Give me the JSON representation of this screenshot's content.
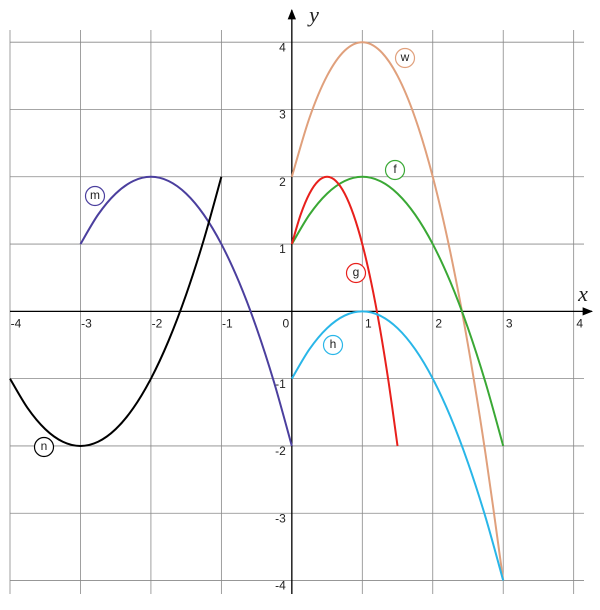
{
  "chart_data": {
    "type": "line",
    "xlabel": "x",
    "ylabel": "y",
    "xlim": [
      -4.0,
      4.26
    ],
    "ylim": [
      -4.2,
      4.3
    ],
    "xticks": [
      -4,
      -3,
      -2,
      -1,
      0,
      1,
      2,
      3,
      4
    ],
    "yticks": [
      -4,
      -3,
      -2,
      -1,
      1,
      2,
      3,
      4
    ],
    "grid": true,
    "series": [
      {
        "name": "w",
        "color": "#e0a07c",
        "x": [
          0,
          0.25,
          0.5,
          0.75,
          1,
          1.25,
          1.5,
          1.75,
          2,
          2.25,
          2.5,
          2.75,
          3
        ],
        "values": [
          2,
          2.875,
          3.5,
          3.875,
          4,
          3.875,
          3.5,
          2.875,
          2,
          0.875,
          -0.5,
          -2.125,
          -4
        ]
      },
      {
        "name": "f",
        "color": "#3aa835",
        "x": [
          0,
          0.25,
          0.5,
          0.75,
          1,
          1.25,
          1.5,
          1.75,
          2,
          2.25,
          2.5,
          2.75,
          3
        ],
        "values": [
          1,
          1.4375,
          1.75,
          1.9375,
          2,
          1.9375,
          1.75,
          1.4375,
          1,
          0.4375,
          -0.25,
          -1.0625,
          -2
        ]
      },
      {
        "name": "g",
        "color": "#e8201c",
        "x": [
          0,
          0.125,
          0.25,
          0.375,
          0.5,
          0.625,
          0.75,
          0.875,
          1,
          1.125,
          1.25,
          1.375,
          1.5
        ],
        "values": [
          1,
          1.4375,
          1.75,
          1.9375,
          2,
          1.9375,
          1.75,
          1.4375,
          1,
          0.4375,
          -0.25,
          -1.0625,
          -2
        ]
      },
      {
        "name": "h",
        "color": "#29b6e8",
        "x": [
          0,
          0.25,
          0.5,
          0.75,
          1,
          1.25,
          1.5,
          1.75,
          2,
          2.25,
          2.5,
          2.75,
          3
        ],
        "values": [
          -1,
          -0.5625,
          -0.25,
          -0.0625,
          0,
          -0.0625,
          -0.25,
          -0.5625,
          -1,
          -1.5625,
          -2.25,
          -3.0625,
          -4
        ]
      },
      {
        "name": "m",
        "color": "#4b3f9e",
        "x": [
          -3,
          -2.75,
          -2.5,
          -2.25,
          -2,
          -1.75,
          -1.5,
          -1.25,
          -1,
          -0.75,
          -0.5,
          -0.25,
          0
        ],
        "values": [
          1,
          1.4375,
          1.75,
          1.9375,
          2,
          1.9375,
          1.75,
          1.4375,
          1,
          0.4375,
          -0.25,
          -1.0625,
          -2
        ]
      },
      {
        "name": "n",
        "color": "#000000",
        "x": [
          -4,
          -3.75,
          -3.5,
          -3.25,
          -3,
          -2.75,
          -2.5,
          -2.25,
          -2,
          -1.75,
          -1.5,
          -1.25,
          -1
        ],
        "values": [
          -1,
          -1.4375,
          -1.75,
          -1.9375,
          -2,
          -1.9375,
          -1.75,
          -1.4375,
          -1,
          -0.4375,
          0.25,
          1.0625,
          2
        ]
      }
    ]
  }
}
